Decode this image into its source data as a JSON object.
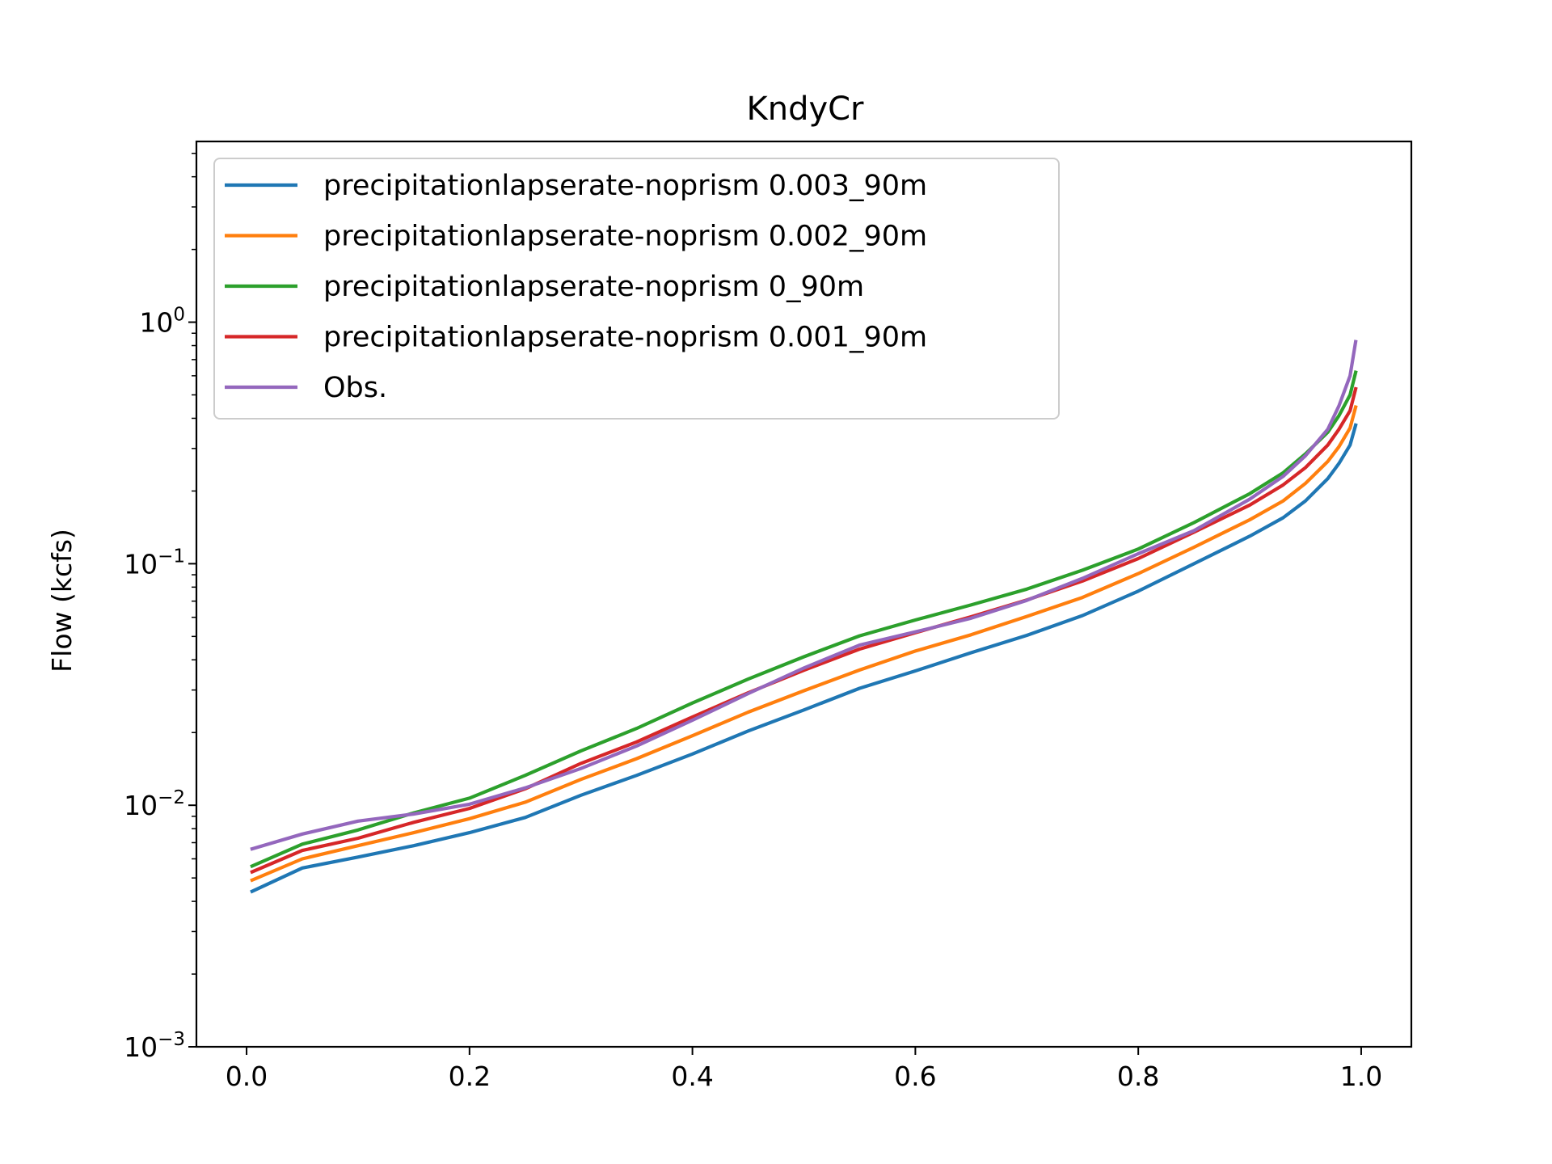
{
  "chart_data": {
    "type": "line",
    "title": "KndyCr",
    "xlabel": "",
    "ylabel": "Flow (kcfs)",
    "yscale": "log",
    "xlim": [
      -0.045,
      1.045
    ],
    "ylim": [
      0.001,
      5.6
    ],
    "grid": false,
    "legend_position": "top-left",
    "x_ticks": [
      {
        "value": 0.0,
        "label": "0.0"
      },
      {
        "value": 0.2,
        "label": "0.2"
      },
      {
        "value": 0.4,
        "label": "0.4"
      },
      {
        "value": 0.6,
        "label": "0.6"
      },
      {
        "value": 0.8,
        "label": "0.8"
      },
      {
        "value": 1.0,
        "label": "1.0"
      }
    ],
    "y_ticks": [
      {
        "value": 0.001,
        "base": "10",
        "exp": "−3"
      },
      {
        "value": 0.01,
        "base": "10",
        "exp": "−2"
      },
      {
        "value": 0.1,
        "base": "10",
        "exp": "−1"
      },
      {
        "value": 1,
        "base": "10",
        "exp": "0"
      }
    ],
    "series": [
      {
        "name": "precipitationlapserate-noprism 0.003_90m",
        "color": "#1f77b4",
        "x": [
          0.005,
          0.05,
          0.1,
          0.15,
          0.2,
          0.25,
          0.3,
          0.35,
          0.4,
          0.45,
          0.5,
          0.55,
          0.6,
          0.65,
          0.7,
          0.75,
          0.8,
          0.85,
          0.9,
          0.93,
          0.95,
          0.97,
          0.98,
          0.99,
          0.995
        ],
        "y": [
          0.0044,
          0.0055,
          0.0061,
          0.0068,
          0.0077,
          0.0089,
          0.011,
          0.0133,
          0.0163,
          0.0203,
          0.0248,
          0.0305,
          0.036,
          0.0428,
          0.0505,
          0.061,
          0.077,
          0.1,
          0.13,
          0.155,
          0.182,
          0.225,
          0.26,
          0.31,
          0.375
        ]
      },
      {
        "name": "precipitationlapserate-noprism 0.002_90m",
        "color": "#ff7f0e",
        "x": [
          0.005,
          0.05,
          0.1,
          0.15,
          0.2,
          0.25,
          0.3,
          0.35,
          0.4,
          0.45,
          0.5,
          0.55,
          0.6,
          0.65,
          0.7,
          0.75,
          0.8,
          0.85,
          0.9,
          0.93,
          0.95,
          0.97,
          0.98,
          0.99,
          0.995
        ],
        "y": [
          0.0049,
          0.006,
          0.0068,
          0.0077,
          0.0088,
          0.0103,
          0.0128,
          0.0156,
          0.0194,
          0.0243,
          0.0298,
          0.0363,
          0.0435,
          0.0508,
          0.0605,
          0.0725,
          0.091,
          0.117,
          0.152,
          0.182,
          0.215,
          0.265,
          0.305,
          0.365,
          0.445
        ]
      },
      {
        "name": "precipitationlapserate-noprism 0_90m",
        "color": "#2ca02c",
        "x": [
          0.005,
          0.05,
          0.1,
          0.15,
          0.2,
          0.25,
          0.3,
          0.35,
          0.4,
          0.45,
          0.5,
          0.55,
          0.6,
          0.65,
          0.7,
          0.75,
          0.8,
          0.85,
          0.9,
          0.93,
          0.95,
          0.97,
          0.98,
          0.99,
          0.995
        ],
        "y": [
          0.0056,
          0.0069,
          0.0079,
          0.0093,
          0.0107,
          0.0133,
          0.0168,
          0.0208,
          0.0265,
          0.0333,
          0.0412,
          0.0503,
          0.0585,
          0.0675,
          0.0785,
          0.094,
          0.115,
          0.148,
          0.195,
          0.238,
          0.285,
          0.35,
          0.41,
          0.5,
          0.62
        ]
      },
      {
        "name": "precipitationlapserate-noprism 0.001_90m",
        "color": "#d62728",
        "x": [
          0.005,
          0.05,
          0.1,
          0.15,
          0.2,
          0.25,
          0.3,
          0.35,
          0.4,
          0.45,
          0.5,
          0.55,
          0.6,
          0.65,
          0.7,
          0.75,
          0.8,
          0.85,
          0.9,
          0.93,
          0.95,
          0.97,
          0.98,
          0.99,
          0.995
        ],
        "y": [
          0.0053,
          0.0065,
          0.0073,
          0.0085,
          0.0097,
          0.0117,
          0.0149,
          0.0183,
          0.0232,
          0.0292,
          0.0362,
          0.0443,
          0.0518,
          0.0603,
          0.0708,
          0.0848,
          0.105,
          0.135,
          0.175,
          0.212,
          0.25,
          0.31,
          0.36,
          0.43,
          0.53
        ]
      },
      {
        "name": "Obs.",
        "color": "#9467bd",
        "x": [
          0.005,
          0.05,
          0.1,
          0.15,
          0.2,
          0.25,
          0.3,
          0.35,
          0.4,
          0.45,
          0.5,
          0.55,
          0.6,
          0.65,
          0.7,
          0.75,
          0.8,
          0.85,
          0.9,
          0.93,
          0.95,
          0.97,
          0.98,
          0.99,
          0.995
        ],
        "y": [
          0.0066,
          0.0076,
          0.0086,
          0.0092,
          0.0101,
          0.0118,
          0.0142,
          0.0176,
          0.0225,
          0.029,
          0.037,
          0.046,
          0.0522,
          0.0595,
          0.0705,
          0.087,
          0.11,
          0.137,
          0.185,
          0.23,
          0.28,
          0.36,
          0.45,
          0.6,
          0.83
        ]
      }
    ]
  }
}
